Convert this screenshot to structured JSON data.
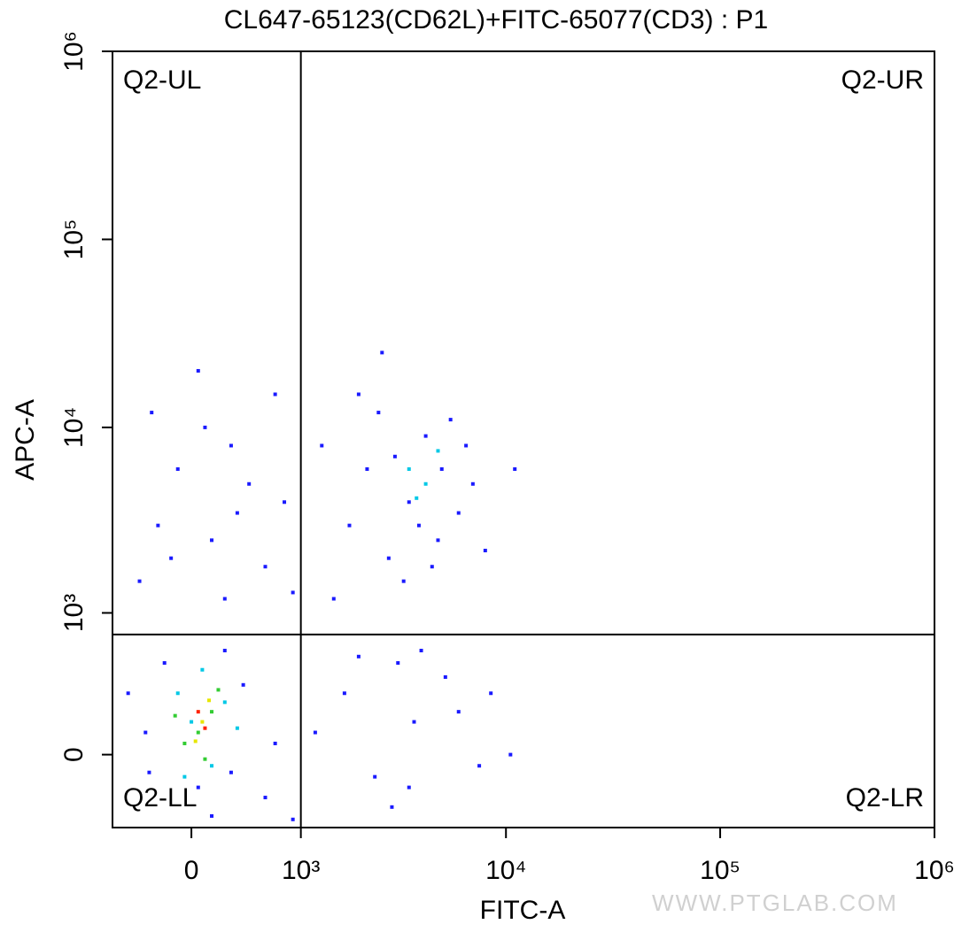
{
  "chart_data": {
    "type": "scatter",
    "title": "CL647-65123(CD62L)+FITC-65077(CD3) : P1",
    "x_label": "FITC-A",
    "y_label": "APC-A",
    "watermark": "WWW.PTGLAB.COM",
    "xlim": [
      -650,
      1000000
    ],
    "ylim": [
      -370,
      1000000
    ],
    "xticks": [
      0,
      {
        "value": 1000,
        "label": "10³"
      },
      {
        "value": 10000,
        "label": "10⁴"
      },
      {
        "value": 100000,
        "label": "10⁵"
      },
      {
        "value": 1000000,
        "label": "10⁶"
      }
    ],
    "yticks": [
      0,
      {
        "value": 1000,
        "label": "10³"
      },
      {
        "value": 100000,
        "label": "10⁵"
      },
      {
        "value": 10000,
        "label": "10⁴"
      },
      {
        "value": 1000000,
        "label": "10⁶"
      }
    ],
    "scale": "biexponential",
    "grid": false,
    "quadrant_x": 1000,
    "quadrant_y": 750,
    "quadrant_labels": [
      "Q2-UL",
      "Q2-UR",
      "Q2-LL",
      "Q2-LR"
    ],
    "series": [
      {
        "color": "#1a1aff",
        "x": [
          -400,
          -250,
          -100,
          150,
          300,
          600,
          800,
          -300,
          50,
          250,
          450,
          -150,
          100,
          350,
          700,
          900,
          1300,
          1800,
          2500,
          3000,
          3500,
          4200,
          5000,
          6000,
          7000,
          2200,
          2800,
          3300,
          4800,
          5500,
          1500,
          2000,
          2600,
          3900,
          4500,
          6500,
          8000,
          11000,
          1700,
          2400,
          3100,
          3700,
          5200,
          7500,
          1200,
          2900,
          4000,
          6000,
          8500,
          10500,
          3500,
          2000,
          150,
          -200,
          400,
          50,
          250,
          600,
          -350,
          -500,
          700,
          900,
          -320,
          300
        ],
        "y": [
          1500,
          3000,
          6000,
          2500,
          8000,
          1800,
          4000,
          12000,
          20000,
          1200,
          5000,
          2000,
          10000,
          3500,
          15000,
          1300,
          8000,
          3000,
          12000,
          7000,
          4000,
          9000,
          6000,
          3500,
          5000,
          6000,
          2000,
          1500,
          2500,
          11000,
          1200,
          15000,
          25000,
          3000,
          1800,
          8000,
          2200,
          6000,
          300,
          -100,
          500,
          150,
          400,
          -50,
          100,
          -250,
          600,
          200,
          300,
          0,
          -150,
          550,
          -300,
          500,
          350,
          -150,
          600,
          -200,
          100,
          300,
          50,
          -320,
          -80,
          -80
        ]
      },
      {
        "color": "#00c8e6",
        "x": [
          0,
          -100,
          150,
          250,
          80,
          -50,
          350,
          3500,
          4200,
          4800,
          3800
        ],
        "y": [
          150,
          300,
          -50,
          250,
          450,
          -100,
          120,
          6000,
          5000,
          7500,
          4200
        ]
      },
      {
        "color": "#33cc33",
        "x": [
          50,
          150,
          -50,
          100,
          200,
          -120
        ],
        "y": [
          100,
          200,
          50,
          -20,
          320,
          180
        ]
      },
      {
        "color": "#e6e600",
        "x": [
          80,
          30,
          130
        ],
        "y": [
          150,
          60,
          260
        ]
      },
      {
        "color": "#ff2200",
        "x": [
          100,
          50
        ],
        "y": [
          120,
          200
        ]
      }
    ]
  }
}
